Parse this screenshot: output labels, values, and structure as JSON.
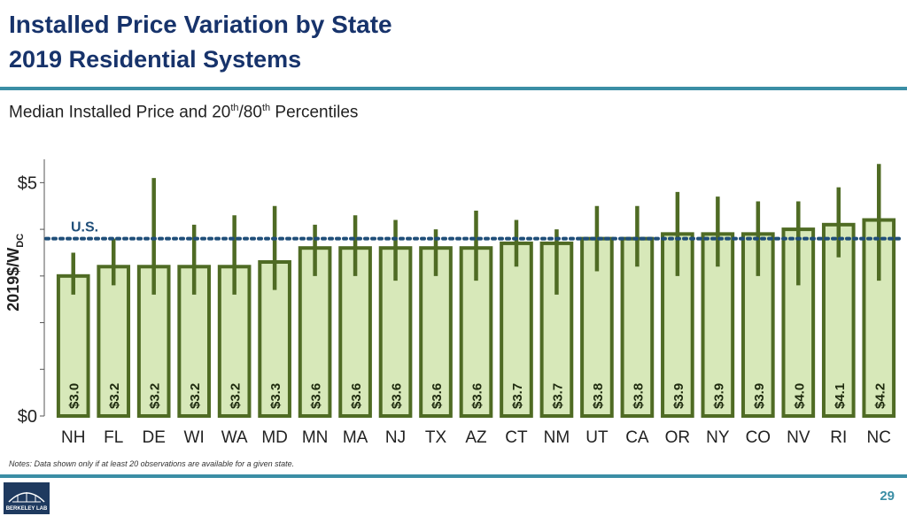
{
  "slide": {
    "title": "Installed Price Variation by State",
    "subtitle": "2019 Residential Systems",
    "chart_title_main": "Median Installed Price and 20",
    "chart_title_sup1": "th",
    "chart_title_mid": "/80",
    "chart_title_sup2": "th",
    "chart_title_end": " Percentiles",
    "ylabel_main": "2019$/W",
    "ylabel_sub": "DC",
    "notes": "Notes: Data shown only if at least 20 observations are available for a given state.",
    "page_number": "29",
    "logo_text": "BERKELEY LAB"
  },
  "colors": {
    "bar_fill": "#d7e8b9",
    "bar_stroke": "#4f6b24",
    "whisker": "#4f6b24",
    "us_line": "#1f4e79",
    "accent": "#3b8ea5"
  },
  "chart_data": {
    "type": "bar",
    "categories": [
      "NH",
      "FL",
      "DE",
      "WI",
      "WA",
      "MD",
      "MN",
      "MA",
      "NJ",
      "TX",
      "AZ",
      "CT",
      "NM",
      "UT",
      "CA",
      "OR",
      "NY",
      "CO",
      "NV",
      "RI",
      "NC"
    ],
    "values": [
      3.0,
      3.2,
      3.2,
      3.2,
      3.2,
      3.3,
      3.6,
      3.6,
      3.6,
      3.6,
      3.6,
      3.7,
      3.7,
      3.8,
      3.8,
      3.9,
      3.9,
      3.9,
      4.0,
      4.1,
      4.2
    ],
    "data_labels": [
      "$3.0",
      "$3.2",
      "$3.2",
      "$3.2",
      "$3.2",
      "$3.3",
      "$3.6",
      "$3.6",
      "$3.6",
      "$3.6",
      "$3.6",
      "$3.7",
      "$3.7",
      "$3.8",
      "$3.8",
      "$3.9",
      "$3.9",
      "$3.9",
      "$4.0",
      "$4.1",
      "$4.2"
    ],
    "p20": [
      2.6,
      2.8,
      2.6,
      2.6,
      2.6,
      2.7,
      3.0,
      3.0,
      2.9,
      3.0,
      2.9,
      3.2,
      2.6,
      3.1,
      3.2,
      3.0,
      3.2,
      3.0,
      2.8,
      3.4,
      2.9
    ],
    "p80": [
      3.5,
      3.8,
      5.1,
      4.1,
      4.3,
      4.5,
      4.1,
      4.3,
      4.2,
      4.0,
      4.4,
      4.2,
      4.0,
      4.5,
      4.5,
      4.8,
      4.7,
      4.6,
      4.6,
      4.9,
      5.4
    ],
    "reference_line": {
      "label": "U.S.",
      "value": 3.8
    },
    "yticks": [
      0,
      1,
      2,
      3,
      4,
      5
    ],
    "ytick_labels": [
      "$0",
      "",
      "",
      "",
      "",
      "$5"
    ],
    "ylim": [
      0,
      5.5
    ]
  }
}
